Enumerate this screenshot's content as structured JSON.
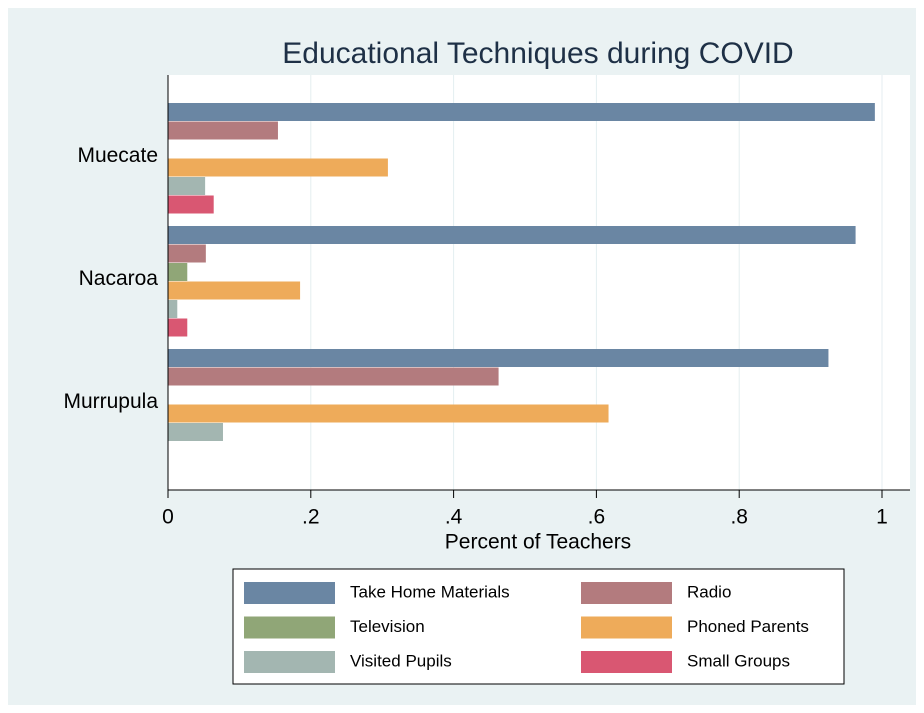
{
  "chart_data": {
    "type": "hbar",
    "title": "Educational Techniques during COVID",
    "x_label": "Percent of Teachers",
    "categories": [
      "Muecate",
      "Nacaroa",
      "Murrupula"
    ],
    "series": [
      {
        "name": "Take Home Materials",
        "color": "#6a86a3",
        "values": [
          0.99,
          0.963,
          0.925
        ]
      },
      {
        "name": "Radio",
        "color": "#b37b7e",
        "values": [
          0.154,
          0.053,
          0.463
        ]
      },
      {
        "name": "Television",
        "color": "#90a677",
        "values": [
          0,
          0.027,
          0
        ]
      },
      {
        "name": "Phoned Parents",
        "color": "#eeab5a",
        "values": [
          0.308,
          0.185,
          0.617
        ]
      },
      {
        "name": "Visited Pupils",
        "color": "#a3b6b1",
        "values": [
          0.052,
          0.013,
          0.077
        ]
      },
      {
        "name": "Small Groups",
        "color": "#d95772",
        "values": [
          0.064,
          0.027,
          0
        ]
      }
    ],
    "xlim": [
      0,
      1
    ],
    "xticks": [
      0,
      {
        "value": 0.2,
        "label": ".2"
      },
      {
        "value": 0.4,
        "label": ".4"
      },
      {
        "value": 0.6,
        "label": ".6"
      },
      {
        "value": 0.8,
        "label": ".8"
      },
      1
    ],
    "grid": true,
    "legend_position": "bottom"
  }
}
